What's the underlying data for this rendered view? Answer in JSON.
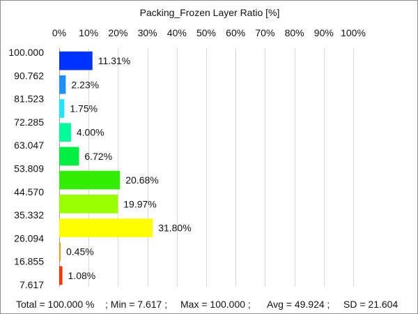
{
  "chart_data": {
    "type": "bar",
    "orientation": "horizontal",
    "title": "Packing_Frozen Layer Ratio [%]",
    "xlim": [
      0,
      100
    ],
    "x_ticks": [
      0,
      10,
      20,
      30,
      40,
      50,
      60,
      70,
      80,
      90,
      100
    ],
    "x_tick_labels": [
      "0%",
      "10%",
      "20%",
      "30%",
      "40%",
      "50%",
      "60%",
      "70%",
      "80%",
      "90%",
      "100%"
    ],
    "x_axis_position": "top",
    "grid": "vertical",
    "y_tick_labels": [
      "100.000",
      "90.762",
      "81.523",
      "72.285",
      "63.047",
      "53.809",
      "44.570",
      "35.332",
      "26.094",
      "16.855",
      "7.617"
    ],
    "bars": [
      {
        "value": 11.31,
        "label": "11.31%",
        "color": "#0033ff"
      },
      {
        "value": 2.23,
        "label": "2.23%",
        "color": "#1e90ff"
      },
      {
        "value": 1.75,
        "label": "1.75%",
        "color": "#22e6ff"
      },
      {
        "value": 4.0,
        "label": "4.00%",
        "color": "#00ff99"
      },
      {
        "value": 6.72,
        "label": "6.72%",
        "color": "#00ee44"
      },
      {
        "value": 20.68,
        "label": "20.68%",
        "color": "#33ee00"
      },
      {
        "value": 19.97,
        "label": "19.97%",
        "color": "#99ff00"
      },
      {
        "value": 31.8,
        "label": "31.80%",
        "color": "#ffff00"
      },
      {
        "value": 0.45,
        "label": "0.45%",
        "color": "#ff9900"
      },
      {
        "value": 1.08,
        "label": "1.08%",
        "color": "#ff3300"
      }
    ]
  },
  "footer": {
    "total": "Total = 100.000 %",
    "min": "; Min = 7.617 ;",
    "max": "Max = 100.000 ;",
    "avg": "Avg = 49.924 ;",
    "sd": "SD = 21.604"
  }
}
